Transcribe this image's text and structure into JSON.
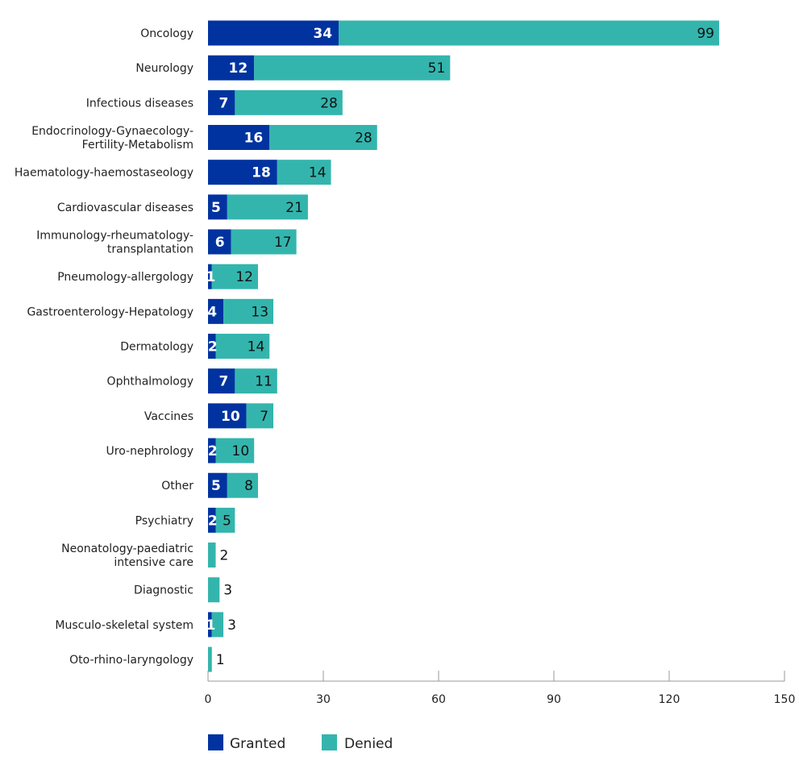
{
  "chart_data": {
    "type": "bar",
    "orientation": "horizontal",
    "stacked": true,
    "categories": [
      [
        "Oncology"
      ],
      [
        "Neurology"
      ],
      [
        "Infectious diseases"
      ],
      [
        "Endocrinology-Gynaecology-",
        "Fertility-Metabolism"
      ],
      [
        "Haematology-haemostaseology"
      ],
      [
        "Cardiovascular diseases"
      ],
      [
        "Immunology-rheumatology-",
        "transplantation"
      ],
      [
        "Pneumology-allergology"
      ],
      [
        "Gastroenterology-Hepatology"
      ],
      [
        "Dermatology"
      ],
      [
        "Ophthalmology"
      ],
      [
        "Vaccines"
      ],
      [
        "Uro-nephrology"
      ],
      [
        "Other"
      ],
      [
        "Psychiatry"
      ],
      [
        "Neonatology-paediatric",
        "intensive care"
      ],
      [
        "Diagnostic"
      ],
      [
        "Musculo-skeletal system"
      ],
      [
        "Oto-rhino-laryngology"
      ]
    ],
    "series": [
      {
        "name": "Granted",
        "color": "#0033a0",
        "values": [
          34,
          12,
          7,
          16,
          18,
          5,
          6,
          1,
          4,
          2,
          7,
          10,
          2,
          5,
          2,
          0,
          0,
          1,
          0
        ]
      },
      {
        "name": "Denied",
        "color": "#33b5ad",
        "values": [
          99,
          51,
          28,
          28,
          14,
          21,
          17,
          12,
          13,
          14,
          11,
          7,
          10,
          8,
          5,
          2,
          3,
          3,
          1
        ]
      }
    ],
    "xlim": [
      0,
      150
    ],
    "xticks": [
      0,
      30,
      60,
      90,
      120,
      150
    ],
    "grid": false,
    "legend": "bottom-left"
  }
}
